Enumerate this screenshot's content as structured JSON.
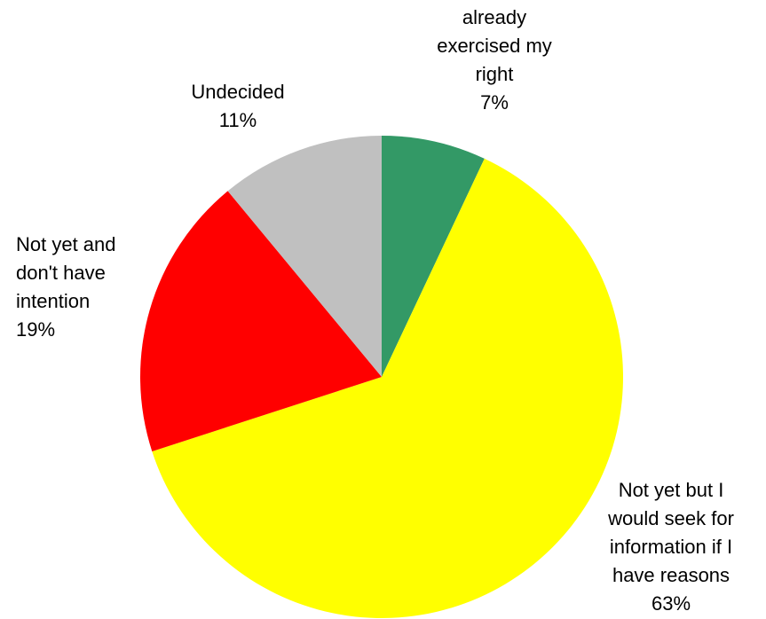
{
  "chart_data": {
    "type": "pie",
    "start_angle_deg": 0,
    "direction": "clockwise",
    "slices": [
      {
        "label_lines": [
          "already",
          "exercised my",
          "right"
        ],
        "percent_label": "7%",
        "value": 7,
        "color": "#339966"
      },
      {
        "label_lines": [
          "Not yet but I",
          "would seek for",
          "information if I",
          "have reasons"
        ],
        "percent_label": "63%",
        "value": 63,
        "color": "#ffff00"
      },
      {
        "label_lines": [
          "Not yet and",
          "don't have",
          "intention"
        ],
        "percent_label": "19%",
        "value": 19,
        "color": "#ff0000"
      },
      {
        "label_lines": [
          "Undecided"
        ],
        "percent_label": "11%",
        "value": 11,
        "color": "#c0c0c0"
      }
    ]
  }
}
